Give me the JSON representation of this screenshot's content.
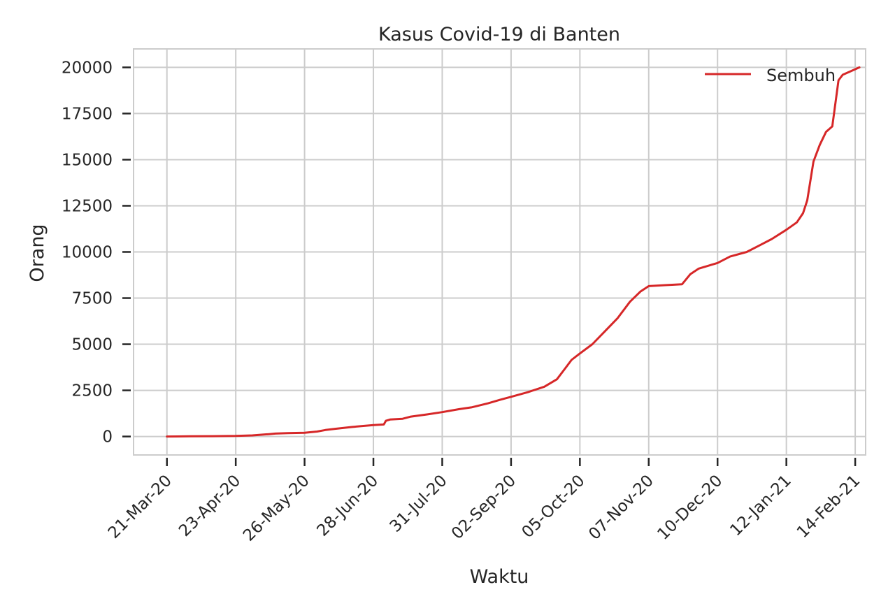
{
  "chart_data": {
    "type": "line",
    "title": "Kasus Covid-19 di Banten",
    "xlabel": "Waktu",
    "ylabel": "Orang",
    "x_tick_labels": [
      "21-Mar-20",
      "23-Apr-20",
      "26-May-20",
      "28-Jun-20",
      "31-Jul-20",
      "02-Sep-20",
      "05-Oct-20",
      "07-Nov-20",
      "10-Dec-20",
      "12-Jan-21",
      "14-Feb-21"
    ],
    "y_ticks": [
      0,
      2500,
      5000,
      7500,
      10000,
      12500,
      15000,
      17500,
      20000
    ],
    "y_tick_labels": [
      "0",
      "2500",
      "5000",
      "7500",
      "10000",
      "12500",
      "15000",
      "17500",
      "20000"
    ],
    "xlim": [
      "2020-03-05",
      "2021-02-19"
    ],
    "ylim": [
      -1000,
      21000
    ],
    "grid": true,
    "legend_position": "top-right",
    "colors": {
      "line": "#d62728",
      "grid": "#cccccc",
      "spine": "#cccccc",
      "text": "#262626"
    },
    "series": [
      {
        "name": "Sembuh",
        "x": [
          "2020-03-21",
          "2020-04-01",
          "2020-04-12",
          "2020-04-23",
          "2020-05-01",
          "2020-05-09",
          "2020-05-12",
          "2020-05-18",
          "2020-05-26",
          "2020-06-01",
          "2020-06-05",
          "2020-06-10",
          "2020-06-18",
          "2020-06-28",
          "2020-07-03",
          "2020-07-04",
          "2020-07-06",
          "2020-07-12",
          "2020-07-16",
          "2020-07-24",
          "2020-07-31",
          "2020-08-08",
          "2020-08-14",
          "2020-08-22",
          "2020-08-28",
          "2020-09-02",
          "2020-09-10",
          "2020-09-18",
          "2020-09-24",
          "2020-09-28",
          "2020-10-01",
          "2020-10-05",
          "2020-10-11",
          "2020-10-17",
          "2020-10-23",
          "2020-10-29",
          "2020-11-03",
          "2020-11-07",
          "2020-11-15",
          "2020-11-23",
          "2020-11-27",
          "2020-12-01",
          "2020-12-10",
          "2020-12-16",
          "2020-12-24",
          "2020-12-30",
          "2021-01-05",
          "2021-01-12",
          "2021-01-17",
          "2021-01-20",
          "2021-01-22",
          "2021-01-25",
          "2021-01-28",
          "2021-01-31",
          "2021-02-03",
          "2021-02-06",
          "2021-02-08",
          "2021-02-12",
          "2021-02-16"
        ],
        "values": [
          0,
          10,
          20,
          30,
          60,
          130,
          160,
          180,
          200,
          270,
          350,
          420,
          520,
          620,
          650,
          850,
          920,
          960,
          1080,
          1200,
          1320,
          1480,
          1580,
          1800,
          2000,
          2150,
          2400,
          2700,
          3100,
          3700,
          4150,
          4500,
          5000,
          5700,
          6400,
          7300,
          7850,
          8150,
          8200,
          8250,
          8800,
          9100,
          9400,
          9750,
          10000,
          10350,
          10700,
          11200,
          11600,
          12100,
          12800,
          14900,
          15800,
          16500,
          16800,
          19300,
          19600,
          19800,
          20000
        ]
      }
    ]
  }
}
